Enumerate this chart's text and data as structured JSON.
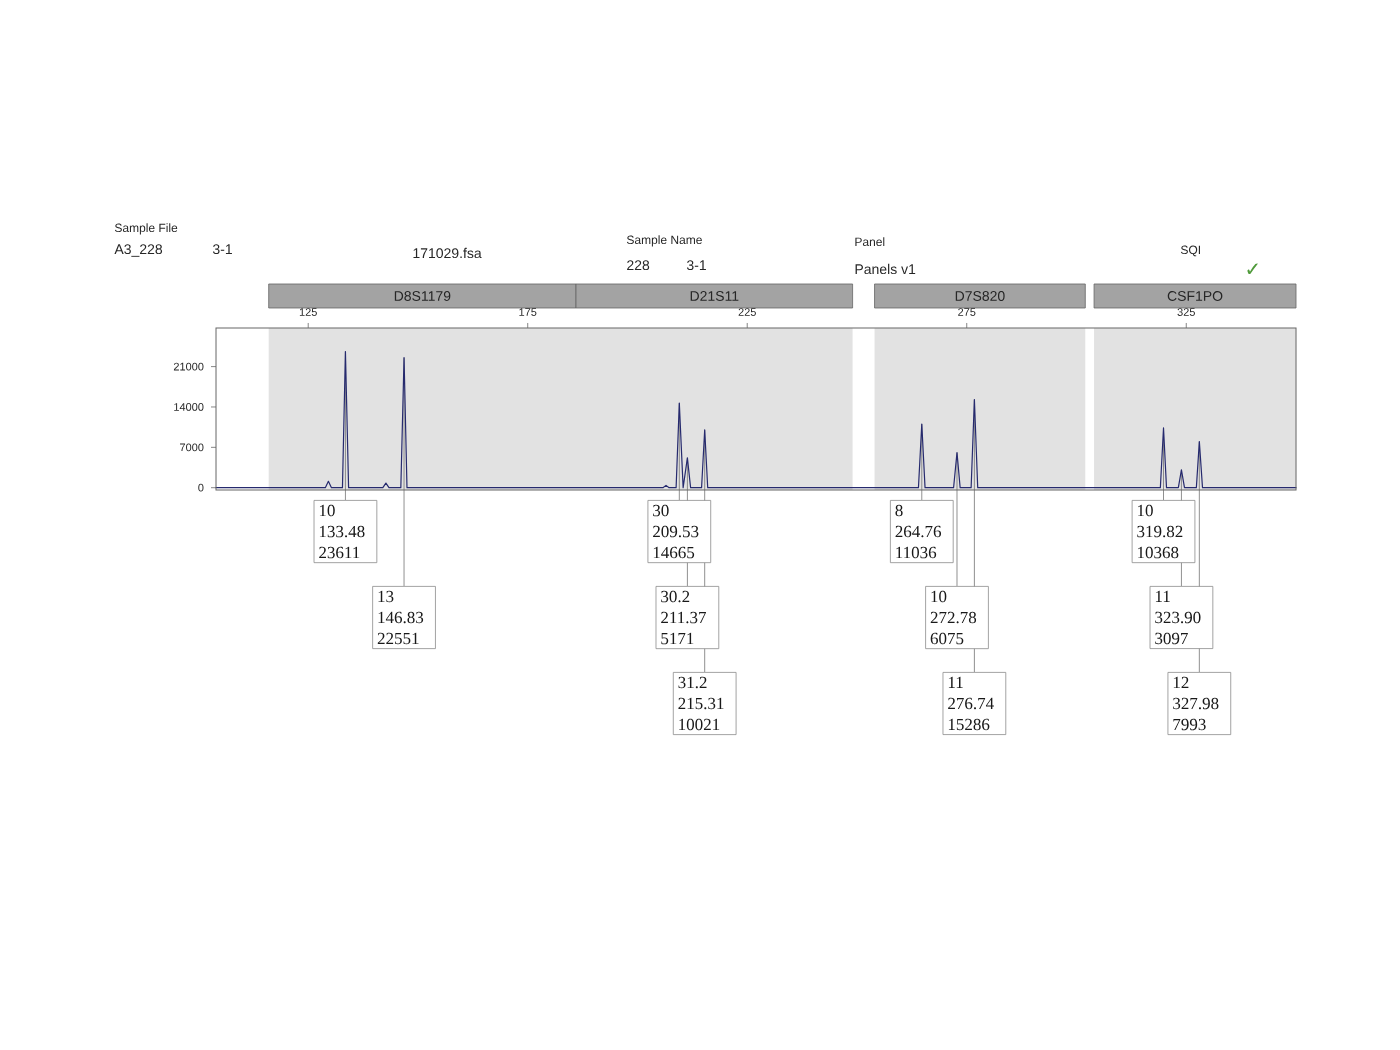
{
  "chart_data": {
    "type": "line",
    "annotations": [
      "Sample File",
      "A3_228",
      "3-1",
      "171029.fsa",
      "Sample Name",
      "228",
      "3-1",
      "Panel",
      "Panels v1",
      "SQI",
      "✓",
      {
        "text": "10 133.48 23611",
        "x": 133.48,
        "y": 23611
      },
      {
        "text": "13 146.83 22551",
        "x": 146.83,
        "y": 22551
      },
      {
        "text": "30 209.53 14665",
        "x": 209.53,
        "y": 14665
      },
      {
        "text": "30.2 211.37 5171",
        "x": 211.37,
        "y": 5171
      },
      {
        "text": "31.2 215.31 10021",
        "x": 215.31,
        "y": 10021
      },
      {
        "text": "8 264.76 11036",
        "x": 264.76,
        "y": 11036
      },
      {
        "text": "10 272.78 6075",
        "x": 272.78,
        "y": 6075
      },
      {
        "text": "11 276.74 15286",
        "x": 276.74,
        "y": 15286
      },
      {
        "text": "10 319.82 10368",
        "x": 319.82,
        "y": 10368
      },
      {
        "text": "11 323.90 3097",
        "x": 323.9,
        "y": 3097
      },
      {
        "text": "12 327.98 7993",
        "x": 327.98,
        "y": 7993
      }
    ],
    "x": [
      104,
      128.9,
      129.6,
      130.3,
      132.8,
      133.48,
      134.2,
      142.0,
      142.7,
      143.4,
      146.1,
      146.83,
      147.5,
      205.8,
      206.5,
      207.2,
      208.8,
      209.53,
      210.4,
      211.37,
      212.1,
      214.6,
      215.31,
      216.0,
      264.0,
      264.76,
      265.5,
      272.0,
      272.78,
      273.5,
      276.0,
      276.74,
      277.5,
      319.1,
      319.82,
      320.5,
      323.2,
      323.9,
      324.6,
      327.3,
      327.98,
      328.7,
      350
    ],
    "values": [
      0,
      0,
      1100,
      0,
      0,
      23611,
      0,
      0,
      800,
      0,
      0,
      22551,
      0,
      0,
      400,
      0,
      0,
      14665,
      0,
      5171,
      0,
      0,
      10021,
      0,
      0,
      11036,
      0,
      0,
      6075,
      0,
      0,
      15286,
      0,
      0,
      10368,
      0,
      0,
      3097,
      0,
      0,
      7993,
      0,
      0
    ],
    "color": "#262a6e",
    "xlim": [
      104,
      350
    ],
    "ylim": [
      -400,
      27700
    ],
    "xticks": [
      125,
      175,
      225,
      275,
      325
    ],
    "yticks": [
      0,
      7000,
      14000,
      21000
    ],
    "bands": [
      {
        "axis": "x",
        "from": 116,
        "to": 186,
        "label": "D8S1179",
        "color": "#e2e2e2"
      },
      {
        "axis": "x",
        "from": 186,
        "to": 249,
        "label": "D21S11",
        "color": "#e2e2e2"
      },
      {
        "axis": "x",
        "from": 254,
        "to": 302,
        "label": "D7S820",
        "color": "#e2e2e2"
      },
      {
        "axis": "x",
        "from": 304,
        "to": 350,
        "label": "CSF1PO",
        "color": "#e2e2e2"
      }
    ]
  }
}
